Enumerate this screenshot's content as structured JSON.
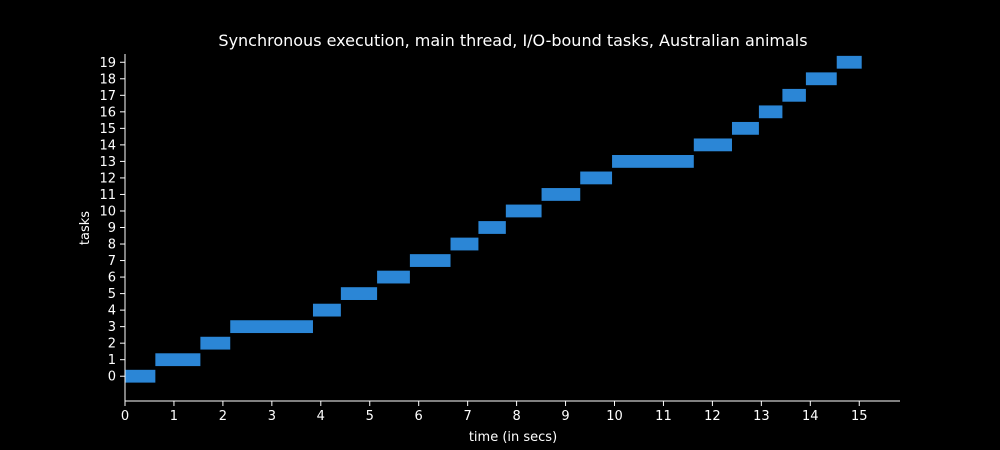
{
  "chart_data": {
    "type": "bar",
    "orientation": "horizontal-gantt",
    "title": "Synchronous execution, main thread, I/O-bound tasks, Australian animals",
    "xlabel": "time (in secs)",
    "ylabel": "tasks",
    "xlim": [
      0,
      15.8
    ],
    "ylim": [
      -1.5,
      19.5
    ],
    "xticks": [
      0,
      1,
      2,
      3,
      4,
      5,
      6,
      7,
      8,
      9,
      10,
      11,
      12,
      13,
      14,
      15
    ],
    "yticks": [
      0,
      1,
      2,
      3,
      4,
      5,
      6,
      7,
      8,
      9,
      10,
      11,
      12,
      13,
      14,
      15,
      16,
      17,
      18,
      19
    ],
    "grid": false,
    "bar_color": "#2b86d6",
    "background": "#000000",
    "foreground": "#ffffff",
    "tasks": [
      {
        "task": 0,
        "start": 0.0,
        "end": 0.62
      },
      {
        "task": 1,
        "start": 0.62,
        "end": 1.54
      },
      {
        "task": 2,
        "start": 1.54,
        "end": 2.15
      },
      {
        "task": 3,
        "start": 2.15,
        "end": 3.84
      },
      {
        "task": 4,
        "start": 3.84,
        "end": 4.41
      },
      {
        "task": 5,
        "start": 4.41,
        "end": 5.15
      },
      {
        "task": 6,
        "start": 5.15,
        "end": 5.82
      },
      {
        "task": 7,
        "start": 5.82,
        "end": 6.65
      },
      {
        "task": 8,
        "start": 6.65,
        "end": 7.22
      },
      {
        "task": 9,
        "start": 7.22,
        "end": 7.78
      },
      {
        "task": 10,
        "start": 7.78,
        "end": 8.51
      },
      {
        "task": 11,
        "start": 8.51,
        "end": 9.3
      },
      {
        "task": 12,
        "start": 9.3,
        "end": 9.95
      },
      {
        "task": 13,
        "start": 9.95,
        "end": 11.62
      },
      {
        "task": 14,
        "start": 11.62,
        "end": 12.4
      },
      {
        "task": 15,
        "start": 12.4,
        "end": 12.95
      },
      {
        "task": 16,
        "start": 12.95,
        "end": 13.43
      },
      {
        "task": 17,
        "start": 13.43,
        "end": 13.91
      },
      {
        "task": 18,
        "start": 13.91,
        "end": 14.54
      },
      {
        "task": 19,
        "start": 14.54,
        "end": 15.05
      }
    ]
  }
}
